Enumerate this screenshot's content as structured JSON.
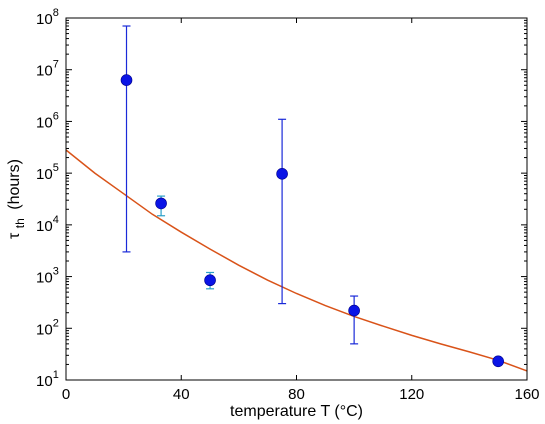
{
  "chart_data": {
    "type": "scatter",
    "xlabel": "temperature T (°C)",
    "ylabel": {
      "symbol": "τ",
      "subscript": "th",
      "unit": "(hours)"
    },
    "xlim": [
      0,
      160
    ],
    "ylim": [
      10,
      100000000
    ],
    "y_scale": "log",
    "grid": false,
    "x_ticks": [
      {
        "value": 0,
        "label": "0"
      },
      {
        "value": 40,
        "label": "40"
      },
      {
        "value": 80,
        "label": "80"
      },
      {
        "value": 120,
        "label": "120"
      },
      {
        "value": 160,
        "label": "160"
      }
    ],
    "y_ticks": [
      {
        "value": 10,
        "base": "10",
        "exp": "1"
      },
      {
        "value": 100,
        "base": "10",
        "exp": "2"
      },
      {
        "value": 1000,
        "base": "10",
        "exp": "3"
      },
      {
        "value": 10000,
        "base": "10",
        "exp": "4"
      },
      {
        "value": 100000,
        "base": "10",
        "exp": "5"
      },
      {
        "value": 1000000,
        "base": "10",
        "exp": "6"
      },
      {
        "value": 10000000,
        "base": "10",
        "exp": "7"
      },
      {
        "value": 100000000,
        "base": "10",
        "exp": "8"
      }
    ],
    "series": [
      {
        "kind": "points_with_errorbars",
        "color": "#0a14e6",
        "points": [
          {
            "x": 21,
            "y": 6300000,
            "y_low": 3000,
            "y_high": 70000000,
            "errcolor": "#1a2ad8"
          },
          {
            "x": 33,
            "y": 26000,
            "y_low": 15000,
            "y_high": 36000,
            "errcolor": "#2aa0c8"
          },
          {
            "x": 50,
            "y": 850,
            "y_low": 580,
            "y_high": 1200,
            "errcolor": "#2aa0c8"
          },
          {
            "x": 75,
            "y": 97000,
            "y_low": 300,
            "y_high": 1100000,
            "errcolor": "#1a2ad8"
          },
          {
            "x": 100,
            "y": 220,
            "y_low": 50,
            "y_high": 420,
            "errcolor": "#1a2ad8"
          },
          {
            "x": 150,
            "y": 23,
            "y_low": 21,
            "y_high": 25,
            "errcolor": "#2aa0c8"
          }
        ]
      },
      {
        "kind": "fit_curve",
        "color": "#d95319",
        "x": [
          0,
          10,
          20,
          30,
          40,
          50,
          60,
          70,
          80,
          90,
          100,
          110,
          120,
          130,
          140,
          150,
          160
        ],
        "y": [
          280000,
          100000,
          40000,
          16000,
          7200,
          3400,
          1650,
          850,
          470,
          275,
          170,
          110,
          73,
          50,
          35,
          24,
          15
        ]
      }
    ]
  }
}
